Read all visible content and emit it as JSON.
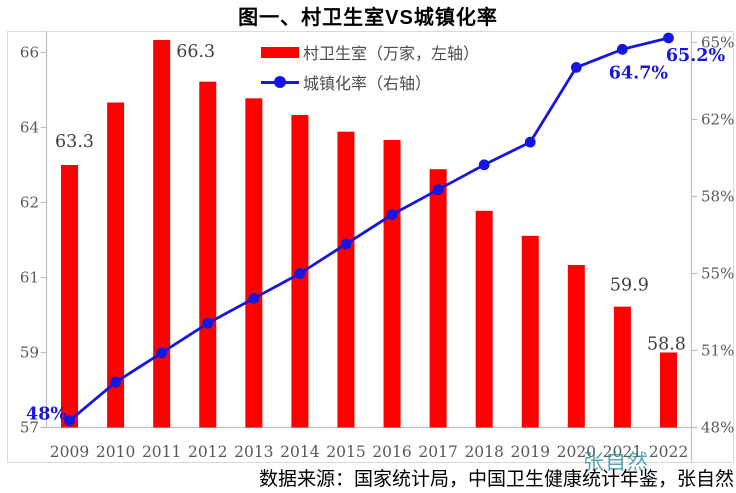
{
  "title": "图一、村卫生室VS城镇化率",
  "legend": {
    "bar": {
      "label": "村卫生室（万家，左轴）"
    },
    "line": {
      "label": "城镇化率（右轴）"
    }
  },
  "watermark": "张自然",
  "source_note": "数据来源：国家统计局，中国卫生健康统计年鉴，张自然",
  "colors": {
    "bar": "#ff0000",
    "line": "#1616e0",
    "axis": "#c0c0c0",
    "frame": "#d9d9d9",
    "tick_label": "#595959",
    "data_label": "#404040",
    "watermark": "rgba(42,140,153,0.78)"
  },
  "chart_data": {
    "type": "combo-bar-line",
    "title": "图一、村卫生室VS城镇化率",
    "categories": [
      "2009",
      "2010",
      "2011",
      "2012",
      "2013",
      "2014",
      "2015",
      "2016",
      "2017",
      "2018",
      "2019",
      "2020",
      "2021",
      "2022"
    ],
    "series": [
      {
        "name": "村卫生室（万家，左轴）",
        "type": "bar",
        "axis": "left",
        "values": [
          63.3,
          64.8,
          66.3,
          65.3,
          64.9,
          64.5,
          64.1,
          63.9,
          63.2,
          62.2,
          61.6,
          60.9,
          59.9,
          58.8
        ],
        "labels": [
          {
            "i": 0,
            "text": "63.3",
            "dx": 5,
            "dy": -24
          },
          {
            "i": 2,
            "text": "66.3",
            "dx": 34,
            "dy": 11
          },
          {
            "i": 12,
            "text": "59.9",
            "dx": 7,
            "dy": -22
          },
          {
            "i": 13,
            "text": "58.8",
            "dx": -2,
            "dy": -9
          }
        ]
      },
      {
        "name": "城镇化率（右轴）",
        "type": "line",
        "axis": "right",
        "values": [
          48.3,
          50.0,
          51.3,
          52.6,
          53.7,
          54.8,
          56.1,
          57.4,
          58.5,
          59.6,
          60.6,
          63.9,
          64.7,
          65.2
        ],
        "labels": [
          {
            "i": 0,
            "text": "48%",
            "dx": -23,
            "dy": -7
          },
          {
            "i": 12,
            "text": "64.7%",
            "dx": 16,
            "dy": 23
          },
          {
            "i": 13,
            "text": "65.2%",
            "dx": 27,
            "dy": 17
          }
        ]
      }
    ],
    "left_axis": {
      "min": 57,
      "tick_labels": [
        "66",
        "64",
        "62",
        "61",
        "59",
        "57"
      ],
      "tick_values": [
        66,
        64.2,
        62.4,
        60.6,
        58.8,
        57
      ]
    },
    "right_axis": {
      "min": 48,
      "tick_labels": [
        "65%",
        "62%",
        "58%",
        "55%",
        "51%",
        "48%"
      ],
      "tick_values": [
        65,
        61.6,
        58.2,
        54.8,
        51.4,
        48
      ]
    },
    "grid": false,
    "legend_position": "top-center"
  }
}
